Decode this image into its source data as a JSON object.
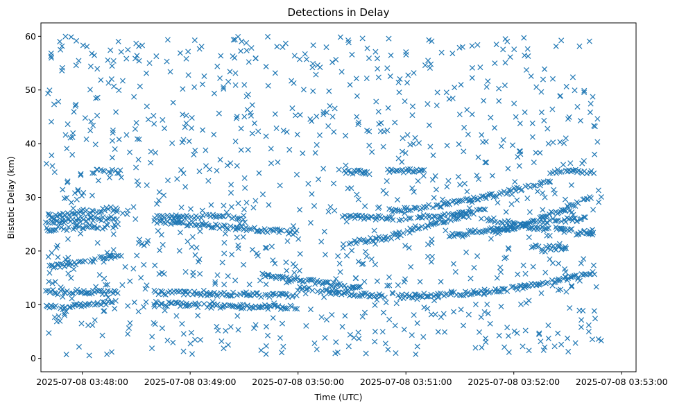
{
  "chart_data": {
    "type": "scatter",
    "title": "Detections in Delay",
    "xlabel": "Time (UTC)",
    "ylabel": "Bistatic Delay (km)",
    "marker": "x",
    "color": "#1f77b4",
    "xlim_seconds_after_03_47_40": [
      -3,
      328
    ],
    "ylim": [
      -2.5,
      62.5
    ],
    "x_ticks": [
      {
        "seconds": 20,
        "label": "2025-07-08 03:48:00"
      },
      {
        "seconds": 80,
        "label": "2025-07-08 03:49:00"
      },
      {
        "seconds": 140,
        "label": "2025-07-08 03:50:00"
      },
      {
        "seconds": 200,
        "label": "2025-07-08 03:51:00"
      },
      {
        "seconds": 260,
        "label": "2025-07-08 03:52:00"
      },
      {
        "seconds": 320,
        "label": "2025-07-08 03:53:00"
      }
    ],
    "y_ticks": [
      0,
      10,
      20,
      30,
      40,
      50,
      60
    ],
    "time_span": {
      "start": "2025-07-08 03:47:40",
      "end": "2025-07-08 03:52:50"
    },
    "tracks": [
      {
        "name": "track-a",
        "t": [
          0,
          15,
          30,
          40
        ],
        "y": [
          26.5,
          27,
          27.5,
          28
        ]
      },
      {
        "name": "track-b",
        "t": [
          0,
          15,
          30,
          40
        ],
        "y": [
          25.5,
          25.7,
          26,
          26
        ]
      },
      {
        "name": "track-c",
        "t": [
          0,
          15,
          30,
          40
        ],
        "y": [
          24,
          24.3,
          24.5,
          24.7
        ]
      },
      {
        "name": "track-d",
        "t": [
          2,
          20,
          35,
          42
        ],
        "y": [
          17,
          18,
          18.8,
          19.2
        ]
      },
      {
        "name": "track-e",
        "t": [
          0,
          20,
          40
        ],
        "y": [
          9.5,
          10,
          10.5
        ]
      },
      {
        "name": "track-f",
        "t": [
          0,
          20,
          40
        ],
        "y": [
          12.5,
          12.4,
          12.3
        ]
      },
      {
        "name": "track-g",
        "t": [
          25,
          35,
          42
        ],
        "y": [
          34.8,
          34.8,
          34.8
        ]
      },
      {
        "name": "track-h",
        "t": [
          60,
          90,
          110
        ],
        "y": [
          26.5,
          26.4,
          26.3
        ]
      },
      {
        "name": "track-i",
        "t": [
          60,
          90,
          115,
          140
        ],
        "y": [
          25.5,
          24.8,
          24,
          23.5
        ]
      },
      {
        "name": "track-j",
        "t": [
          60,
          90,
          115,
          140
        ],
        "y": [
          12.3,
          12,
          11.8,
          11.8
        ]
      },
      {
        "name": "track-k",
        "t": [
          60,
          90,
          115,
          140
        ],
        "y": [
          10.2,
          9.8,
          9.5,
          9.6
        ]
      },
      {
        "name": "track-l",
        "t": [
          120,
          150,
          175
        ],
        "y": [
          15.5,
          14.2,
          13
        ]
      },
      {
        "name": "track-m",
        "t": [
          140,
          170,
          190
        ],
        "y": [
          13,
          12,
          11.5
        ]
      },
      {
        "name": "track-n",
        "t": [
          165,
          200,
          235
        ],
        "y": [
          26.5,
          26,
          27.2
        ]
      },
      {
        "name": "track-o",
        "t": [
          165,
          190,
          215,
          245
        ],
        "y": [
          21.5,
          22.5,
          25,
          28
        ]
      },
      {
        "name": "track-p",
        "t": [
          190,
          220,
          250,
          280
        ],
        "y": [
          27.5,
          28.5,
          30.5,
          33
        ]
      },
      {
        "name": "track-q",
        "t": [
          195,
          230,
          260,
          290,
          305
        ],
        "y": [
          11.5,
          12,
          13,
          14.8,
          16
        ]
      },
      {
        "name": "track-r",
        "t": [
          225,
          250,
          275,
          300
        ],
        "y": [
          23,
          24,
          25.5,
          26
        ]
      },
      {
        "name": "track-s",
        "t": [
          245,
          270,
          295,
          305
        ],
        "y": [
          26,
          24.5,
          23.5,
          23.3
        ]
      },
      {
        "name": "track-t",
        "t": [
          250,
          280,
          305
        ],
        "y": [
          23.5,
          26.5,
          30.5
        ]
      },
      {
        "name": "track-u",
        "t": [
          270,
          290
        ],
        "y": [
          20.8,
          20.5
        ]
      },
      {
        "name": "track-v",
        "t": [
          280,
          305
        ],
        "y": [
          34.8,
          34.8
        ]
      },
      {
        "name": "track-w",
        "t": [
          165,
          180
        ],
        "y": [
          34.7,
          34.7
        ]
      },
      {
        "name": "track-x",
        "t": [
          190,
          210
        ],
        "y": [
          35,
          35
        ]
      }
    ],
    "scattered_points_note": "uniform clutter of detections across delay 0-60 km over the full time span"
  }
}
